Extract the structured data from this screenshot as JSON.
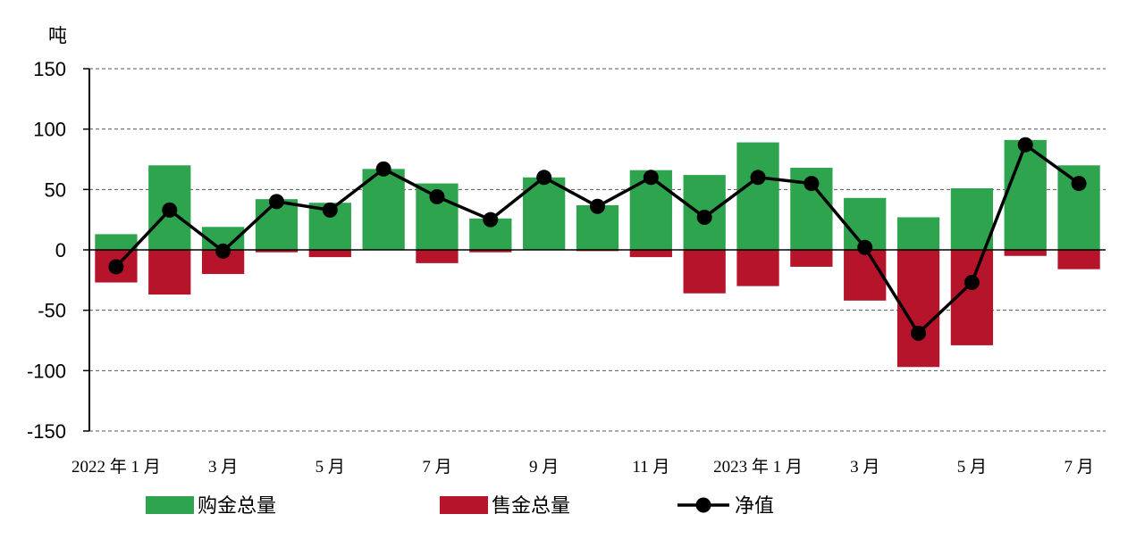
{
  "chart_data": {
    "type": "bar",
    "unit_label": "吨",
    "ylim": [
      -150,
      150
    ],
    "yticks": [
      "150",
      "100",
      "50",
      "0",
      "-50",
      "-100",
      "-150"
    ],
    "grid": true,
    "legend_position": "bottom",
    "categories": [
      "2022年1月",
      "2022年2月",
      "2022年3月",
      "2022年4月",
      "2022年5月",
      "2022年6月",
      "2022年7月",
      "2022年8月",
      "2022年9月",
      "2022年10月",
      "2022年11月",
      "2022年12月",
      "2023年1月",
      "2023年2月",
      "2023年3月",
      "2023年4月",
      "2023年5月",
      "2023年6月",
      "2023年7月"
    ],
    "x_tick_labels": [
      "2022 年 1 月",
      "",
      "3 月",
      "",
      "5 月",
      "",
      "7 月",
      "",
      "9 月",
      "",
      "11 月",
      "",
      "2023 年 1 月",
      "",
      "3 月",
      "",
      "5 月",
      "",
      "7 月"
    ],
    "series": [
      {
        "name": "购金总量",
        "kind": "bar",
        "color": "#2ea44f",
        "values": [
          13,
          70,
          19,
          42,
          39,
          67,
          55,
          26,
          60,
          37,
          66,
          62,
          89,
          68,
          43,
          27,
          51,
          91,
          70
        ]
      },
      {
        "name": "售金总量",
        "kind": "bar",
        "color": "#b5142a",
        "values": [
          -27,
          -37,
          -20,
          -2,
          -6,
          0,
          -11,
          -2,
          0,
          -1,
          -6,
          -36,
          -30,
          -14,
          -42,
          -97,
          -79,
          -5,
          -16
        ]
      },
      {
        "name": "净值",
        "kind": "line",
        "color": "#000000",
        "values": [
          -14,
          33,
          -1,
          40,
          33,
          67,
          44,
          25,
          60,
          36,
          60,
          27,
          60,
          55,
          2,
          -69,
          -27,
          87,
          55
        ]
      }
    ]
  }
}
